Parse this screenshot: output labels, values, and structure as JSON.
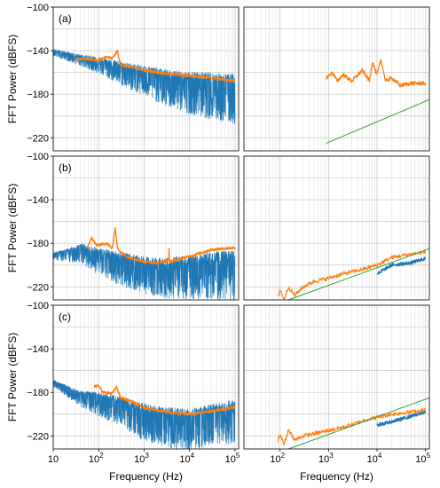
{
  "chart_data": {
    "type": "line",
    "ylabel": "FFT Power (dBFS)",
    "xlabel": "Frequency (Hz)",
    "xscale": "log",
    "yticks": [
      -100,
      -140,
      -180,
      -220
    ],
    "ylim": [
      -232,
      -100
    ],
    "grid": true,
    "panel_labels": [
      "(a)",
      "(b)",
      "(c)"
    ],
    "left_xlim": [
      10,
      120000
    ],
    "right_xlim": [
      18,
      120000
    ],
    "xtick_labels": [
      {
        "v": 10,
        "base": "10",
        "exp": ""
      },
      {
        "v": 100,
        "base": "10",
        "exp": "2"
      },
      {
        "v": 1000,
        "base": "10",
        "exp": "3"
      },
      {
        "v": 10000,
        "base": "10",
        "exp": "4"
      },
      {
        "v": 100000,
        "base": "10",
        "exp": "5"
      }
    ],
    "colors": {
      "blue": "#1f77b4",
      "orange": "#ff7f0e",
      "green": "#2ca02c"
    },
    "panels": [
      {
        "label": "(a)",
        "left": {
          "blue_trend": [
            [
              10,
              -140
            ],
            [
              20,
              -143
            ],
            [
              40,
              -146
            ],
            [
              100,
              -149
            ],
            [
              300,
              -155
            ],
            [
              1000,
              -160
            ],
            [
              3000,
              -165
            ],
            [
              10000,
              -168
            ],
            [
              30000,
              -170
            ],
            [
              100000,
              -172
            ]
          ],
          "blue_spread": [
            [
              10,
              4
            ],
            [
              30,
              6
            ],
            [
              100,
              10
            ],
            [
              300,
              14
            ],
            [
              1000,
              18
            ],
            [
              3000,
              22
            ],
            [
              10000,
              25
            ],
            [
              30000,
              28
            ],
            [
              100000,
              30
            ]
          ],
          "orange": [
            [
              30,
              -148
            ],
            [
              50,
              -147
            ],
            [
              100,
              -149
            ],
            [
              150,
              -146
            ],
            [
              200,
              -147
            ],
            [
              260,
              -140
            ],
            [
              300,
              -153
            ],
            [
              500,
              -155
            ],
            [
              1000,
              -158
            ],
            [
              3000,
              -161
            ],
            [
              10000,
              -163
            ],
            [
              30000,
              -165
            ],
            [
              100000,
              -168
            ]
          ]
        },
        "right": {
          "orange": [
            [
              900,
              -165
            ],
            [
              1200,
              -160
            ],
            [
              1500,
              -168
            ],
            [
              2000,
              -162
            ],
            [
              3000,
              -168
            ],
            [
              5000,
              -158
            ],
            [
              7000,
              -168
            ],
            [
              8000,
              -150
            ],
            [
              10000,
              -163
            ],
            [
              12000,
              -148
            ],
            [
              15000,
              -168
            ],
            [
              20000,
              -165
            ],
            [
              30000,
              -172
            ],
            [
              50000,
              -170
            ],
            [
              100000,
              -170
            ]
          ],
          "green": [
            [
              900,
              -225
            ],
            [
              120000,
              -185
            ]
          ]
        }
      },
      {
        "label": "(b)",
        "left": {
          "blue_trend": [
            [
              10,
              -190
            ],
            [
              20,
              -188
            ],
            [
              40,
              -184
            ],
            [
              100,
              -190
            ],
            [
              300,
              -195
            ],
            [
              1000,
              -200
            ],
            [
              3000,
              -202
            ],
            [
              10000,
              -200
            ],
            [
              30000,
              -198
            ],
            [
              100000,
              -197
            ]
          ],
          "blue_spread": [
            [
              10,
              4
            ],
            [
              30,
              10
            ],
            [
              100,
              16
            ],
            [
              300,
              20
            ],
            [
              1000,
              22
            ],
            [
              3000,
              24
            ],
            [
              10000,
              26
            ],
            [
              30000,
              28
            ],
            [
              100000,
              30
            ]
          ],
          "orange": [
            [
              55,
              -185
            ],
            [
              70,
              -175
            ],
            [
              90,
              -182
            ],
            [
              150,
              -180
            ],
            [
              200,
              -185
            ],
            [
              230,
              -165
            ],
            [
              260,
              -185
            ],
            [
              400,
              -192
            ],
            [
              700,
              -195
            ],
            [
              1000,
              -197
            ],
            [
              2000,
              -198
            ],
            [
              3500,
              -195
            ],
            [
              3500,
              -175
            ],
            [
              3600,
              -197
            ],
            [
              10000,
              -192
            ],
            [
              30000,
              -186
            ],
            [
              100000,
              -184
            ]
          ]
        },
        "right": {
          "orange": [
            [
              90,
              -230
            ],
            [
              100,
              -222
            ],
            [
              120,
              -232
            ],
            [
              150,
              -220
            ],
            [
              200,
              -228
            ],
            [
              300,
              -220
            ],
            [
              500,
              -215
            ],
            [
              1000,
              -212
            ],
            [
              2000,
              -208
            ],
            [
              4000,
              -205
            ],
            [
              6000,
              -203
            ],
            [
              10000,
              -200
            ],
            [
              20000,
              -193
            ],
            [
              50000,
              -190
            ],
            [
              100000,
              -188
            ]
          ],
          "blue": [
            [
              10000,
              -208
            ],
            [
              20000,
              -200
            ],
            [
              50000,
              -198
            ],
            [
              100000,
              -194
            ]
          ],
          "green": [
            [
              150,
              -232
            ],
            [
              120000,
              -185
            ]
          ]
        }
      },
      {
        "label": "(c)",
        "left": {
          "blue_trend": [
            [
              10,
              -170
            ],
            [
              20,
              -176
            ],
            [
              40,
              -182
            ],
            [
              100,
              -185
            ],
            [
              300,
              -190
            ],
            [
              1000,
              -198
            ],
            [
              3000,
              -202
            ],
            [
              10000,
              -204
            ],
            [
              30000,
              -200
            ],
            [
              100000,
              -196
            ]
          ],
          "blue_spread": [
            [
              10,
              4
            ],
            [
              30,
              8
            ],
            [
              100,
              14
            ],
            [
              300,
              18
            ],
            [
              1000,
              22
            ],
            [
              3000,
              24
            ],
            [
              10000,
              26
            ],
            [
              30000,
              26
            ],
            [
              100000,
              26
            ]
          ],
          "orange": [
            [
              80,
              -175
            ],
            [
              100,
              -173
            ],
            [
              120,
              -180
            ],
            [
              200,
              -181
            ],
            [
              250,
              -175
            ],
            [
              300,
              -185
            ],
            [
              500,
              -188
            ],
            [
              1000,
              -194
            ],
            [
              3000,
              -198
            ],
            [
              10000,
              -200
            ],
            [
              30000,
              -197
            ],
            [
              100000,
              -194
            ]
          ]
        },
        "right": {
          "orange": [
            [
              90,
              -225
            ],
            [
              100,
              -218
            ],
            [
              120,
              -228
            ],
            [
              150,
              -214
            ],
            [
              200,
              -224
            ],
            [
              300,
              -220
            ],
            [
              500,
              -218
            ],
            [
              1000,
              -215
            ],
            [
              2000,
              -212
            ],
            [
              4000,
              -208
            ],
            [
              6000,
              -205
            ],
            [
              10000,
              -203
            ],
            [
              20000,
              -200
            ],
            [
              50000,
              -198
            ],
            [
              100000,
              -196
            ]
          ],
          "blue": [
            [
              10000,
              -210
            ],
            [
              20000,
              -207
            ],
            [
              50000,
              -202
            ],
            [
              100000,
              -198
            ]
          ],
          "green": [
            [
              150,
              -232
            ],
            [
              120000,
              -185
            ]
          ]
        }
      }
    ]
  }
}
